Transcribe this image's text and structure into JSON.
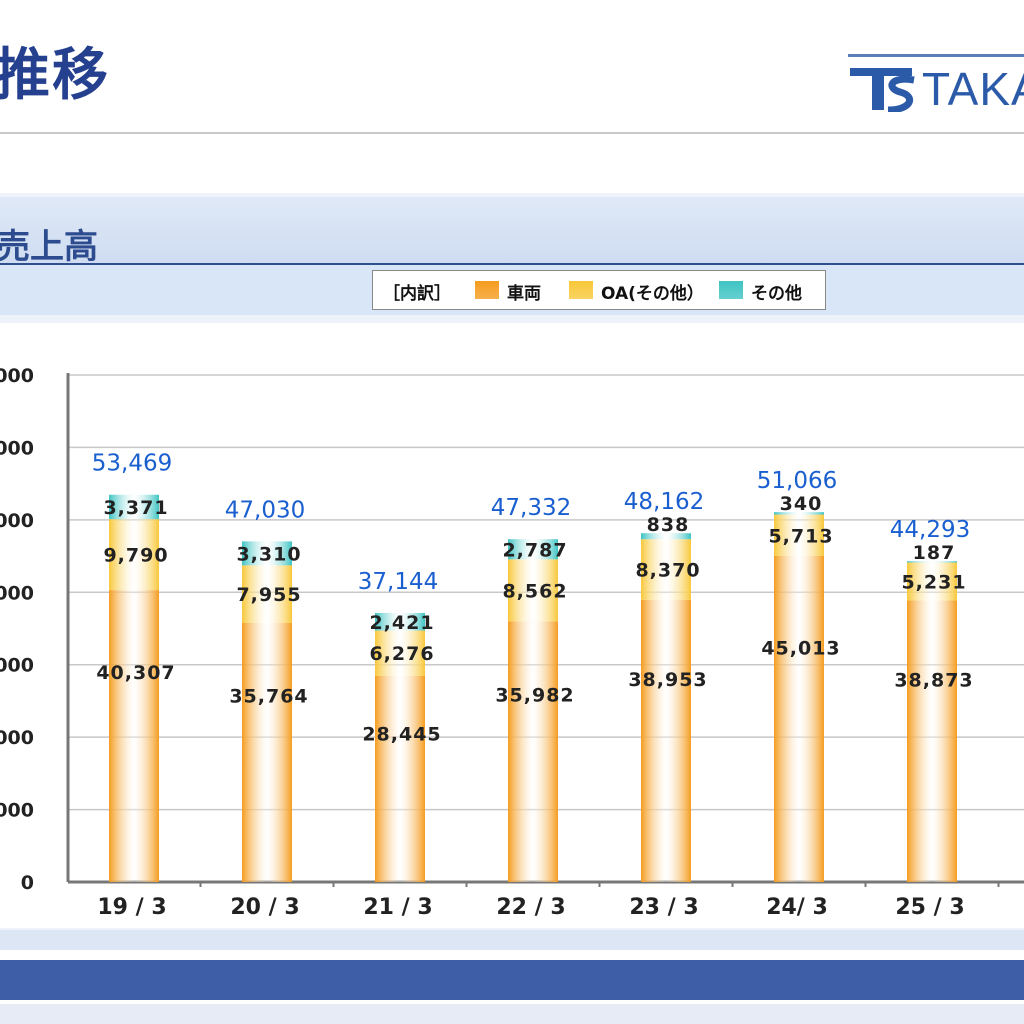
{
  "header": {
    "title": "推移",
    "logo_text": "TAKA"
  },
  "section": {
    "title": "売上高"
  },
  "legend": {
    "heading": "［内訳］",
    "items": [
      {
        "label": "車両",
        "color": "#f59c1f"
      },
      {
        "label": "OA(その他）",
        "color": "#f8c83a"
      },
      {
        "label": "その他",
        "color": "#3fc3c3"
      }
    ]
  },
  "chart_data": {
    "type": "bar",
    "stacked": true,
    "categories": [
      "19 / 3",
      "20 / 3",
      "21 / 3",
      "22 / 3",
      "23 / 3",
      "24/ 3",
      "25 / 3"
    ],
    "series": [
      {
        "name": "車両",
        "values": [
          40307,
          35764,
          28445,
          35982,
          38953,
          45013,
          38873
        ],
        "color": "#f59c1f"
      },
      {
        "name": "OA(その他）",
        "values": [
          9790,
          7955,
          6276,
          8562,
          8370,
          5713,
          5231
        ],
        "color": "#f8c83a"
      },
      {
        "name": "その他",
        "values": [
          3371,
          3310,
          2421,
          2787,
          838,
          340,
          187
        ],
        "color": "#3fc3c3"
      }
    ],
    "totals": [
      53469,
      47030,
      37144,
      47332,
      48162,
      51066,
      44293
    ],
    "value_labels": {
      "s0": [
        "40,307",
        "35,764",
        "28,445",
        "35,982",
        "38,953",
        "45,013",
        "38,873"
      ],
      "s1": [
        "9,790",
        "7,955",
        "6,276",
        "8,562",
        "8,370",
        "5,713",
        "5,231"
      ],
      "s2": [
        "3,371",
        "3,310",
        "2,421",
        "2,787",
        "838",
        "340",
        "187"
      ],
      "totals": [
        "53,469",
        "47,030",
        "37,144",
        "47,332",
        "48,162",
        "51,066",
        "44,293"
      ]
    },
    "yaxis_ticks": [
      "000",
      "000",
      "000",
      "000",
      "000",
      "000",
      "000",
      "0"
    ],
    "ylim": [
      0,
      70000
    ],
    "grid": true,
    "total_label_color": "#1a5fd0"
  }
}
